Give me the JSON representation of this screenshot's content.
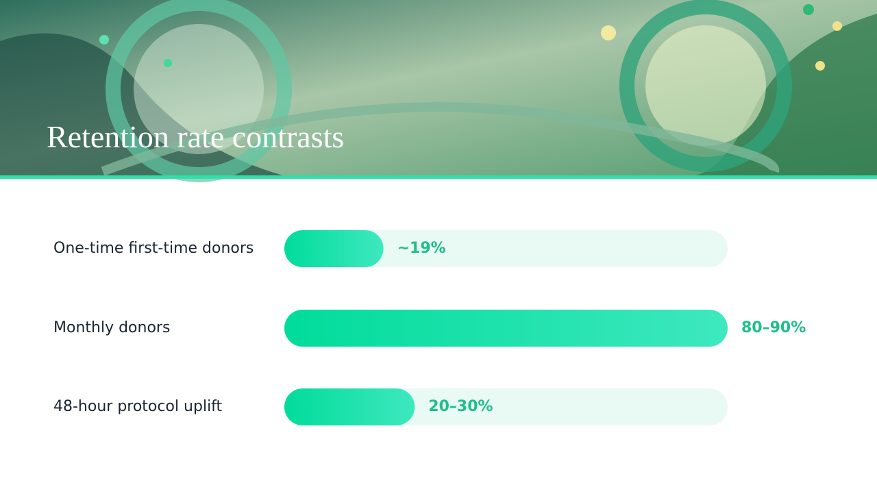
{
  "chart_data": {
    "type": "bar",
    "orientation": "horizontal",
    "title": "Retention rate contrasts",
    "categories": [
      "One-time first-time donors",
      "Monthly donors",
      "48-hour protocol uplift"
    ],
    "values": [
      19,
      85,
      25
    ],
    "value_labels": [
      "~19%",
      "80–90%",
      "20–30%"
    ],
    "xlim": [
      0,
      85
    ],
    "color": "#00dc9a",
    "track_color": "#e9f9f3"
  }
}
